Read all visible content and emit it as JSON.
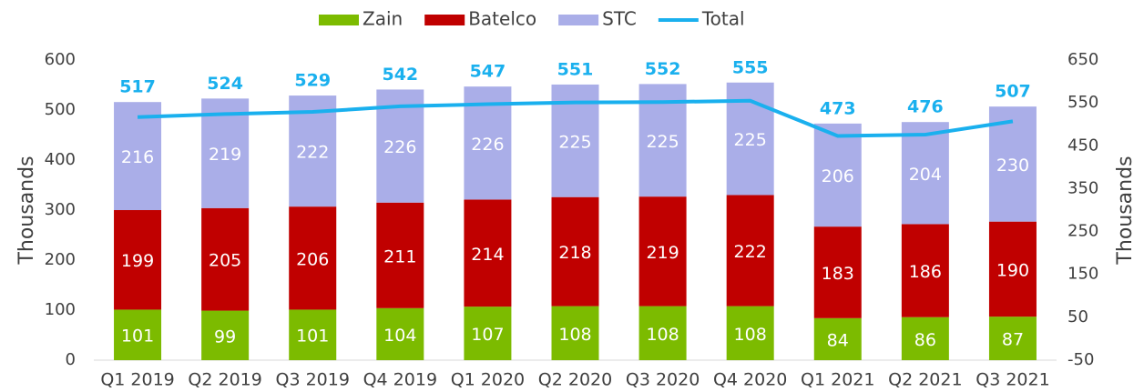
{
  "chart_data": {
    "type": "bar",
    "categories": [
      "Q1 2019",
      "Q2 2019",
      "Q3 2019",
      "Q4 2019",
      "Q1 2020",
      "Q2 2020",
      "Q3 2020",
      "Q4 2020",
      "Q1 2021",
      "Q2 2021",
      "Q3 2021"
    ],
    "series": [
      {
        "name": "Zain",
        "color": "#7cbb00",
        "values": [
          101,
          99,
          101,
          104,
          107,
          108,
          108,
          108,
          84,
          86,
          87
        ]
      },
      {
        "name": "Batelco",
        "color": "#c00000",
        "values": [
          199,
          205,
          206,
          211,
          214,
          218,
          219,
          222,
          183,
          186,
          190
        ]
      },
      {
        "name": "STC",
        "color": "#aaaee8",
        "values": [
          216,
          219,
          222,
          226,
          226,
          225,
          225,
          225,
          206,
          204,
          230
        ]
      },
      {
        "name": "Total",
        "type": "line",
        "axis": "y2",
        "color": "#1ab0ee",
        "values": [
          517,
          524,
          529,
          542,
          547,
          551,
          552,
          555,
          473,
          476,
          507
        ]
      }
    ],
    "y_label": "Thousands",
    "y2_label": "Thousands",
    "ylim": [
      0,
      600
    ],
    "yticks": [
      0,
      100,
      200,
      300,
      400,
      500,
      600
    ],
    "y2lim": [
      -50,
      650
    ],
    "y2ticks": [
      -50,
      50,
      150,
      250,
      350,
      450,
      550,
      650
    ],
    "stacked": true,
    "legend": "top"
  }
}
